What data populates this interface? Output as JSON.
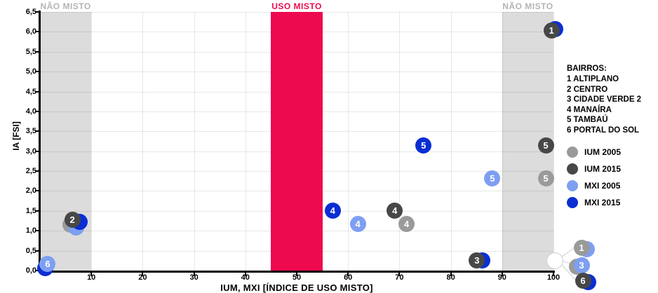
{
  "chart_data": {
    "type": "scatter",
    "xlabel": "IUM, MXI [ÍNDICE DE USO MISTO]",
    "ylabel": "IA [FSI]",
    "xlim": [
      0,
      100
    ],
    "ylim": [
      0,
      6.5
    ],
    "grid": true,
    "x_ticks": [
      10,
      20,
      30,
      40,
      50,
      60,
      70,
      80,
      90,
      100
    ],
    "x_tick_labels": [
      "10",
      "20",
      "30",
      "40",
      "50",
      "60",
      "70",
      "80",
      "90",
      "100"
    ],
    "y_ticks": [
      0,
      0.5,
      1,
      1.5,
      2,
      2.5,
      3,
      3.5,
      4,
      4.5,
      5,
      5.5,
      6,
      6.5
    ],
    "y_tick_labels": [
      "0,0",
      "0,5",
      "1,0",
      "1,5",
      "2,0",
      "2,5",
      "3,0",
      "3,5",
      "4,0",
      "4,5",
      "5,0",
      "5,5",
      "6,0",
      "6,5"
    ],
    "bands": [
      {
        "label": "NÃO MISTO",
        "x0": 0,
        "x1": 10,
        "color": "#dcdcdc",
        "label_color": "#b4b4b4",
        "overlay": false
      },
      {
        "label": "USO MISTO",
        "x0": 45,
        "x1": 55,
        "color": "#ed0a4f",
        "label_color": "#ed0a4f",
        "overlay": true
      },
      {
        "label": "NÃO MISTO",
        "x0": 90,
        "x1": 100,
        "color": "#dcdcdc",
        "label_color": "#b4b4b4",
        "overlay": false
      }
    ],
    "series": [
      {
        "name": "IUM 2005",
        "color": "#9a9a9a"
      },
      {
        "name": "IUM 2015",
        "color": "#474747"
      },
      {
        "name": "MXI 2005",
        "color": "#7e9ff1"
      },
      {
        "name": "MXI 2015",
        "color": "#0a2ed2"
      }
    ],
    "points": [
      {
        "bairro": 6,
        "series": "MXI 2015",
        "x": 1.0,
        "y": 0.07,
        "show_label": false
      },
      {
        "bairro": 6,
        "series": "MXI 2005",
        "x": 1.5,
        "y": 0.16,
        "show_label": true
      },
      {
        "bairro": 2,
        "series": "IUM 2005",
        "x": 5.9,
        "y": 1.15,
        "show_label": false
      },
      {
        "bairro": 2,
        "series": "MXI 2005",
        "x": 7.0,
        "y": 1.09,
        "show_label": false
      },
      {
        "bairro": 2,
        "series": "MXI 2015",
        "x": 7.7,
        "y": 1.23,
        "show_label": false
      },
      {
        "bairro": 2,
        "series": "IUM 2015",
        "x": 6.3,
        "y": 1.27,
        "show_label": true
      },
      {
        "bairro": 4,
        "series": "MXI 2015",
        "x": 57.0,
        "y": 1.5,
        "show_label": true
      },
      {
        "bairro": 4,
        "series": "MXI 2005",
        "x": 61.9,
        "y": 1.18,
        "show_label": true
      },
      {
        "bairro": 4,
        "series": "IUM 2015",
        "x": 69.1,
        "y": 1.5,
        "show_label": true
      },
      {
        "bairro": 4,
        "series": "IUM 2005",
        "x": 71.4,
        "y": 1.18,
        "show_label": true
      },
      {
        "bairro": 5,
        "series": "MXI 2015",
        "x": 74.7,
        "y": 3.14,
        "show_label": true
      },
      {
        "bairro": 5,
        "series": "MXI 2005",
        "x": 88.1,
        "y": 2.31,
        "show_label": true
      },
      {
        "bairro": 5,
        "series": "IUM 2015",
        "x": 98.5,
        "y": 3.14,
        "show_label": true
      },
      {
        "bairro": 5,
        "series": "IUM 2005",
        "x": 98.5,
        "y": 2.31,
        "show_label": true
      },
      {
        "bairro": 3,
        "series": "MXI 2015",
        "x": 86.2,
        "y": 0.26,
        "show_label": false
      },
      {
        "bairro": 3,
        "series": "IUM 2015",
        "x": 85.1,
        "y": 0.25,
        "show_label": true
      },
      {
        "bairro": 1,
        "series": "MXI 2015",
        "x": 100.4,
        "y": 6.06,
        "show_label": false
      },
      {
        "bairro": 1,
        "series": "IUM 2015",
        "x": 99.6,
        "y": 6.04,
        "show_label": true
      }
    ],
    "callout": {
      "anchor": {
        "x": 100.3,
        "y": 0.25
      },
      "badges": [
        {
          "label": "1",
          "front": "IUM 2005",
          "back": "MXI 2005",
          "back_side": "right"
        },
        {
          "label": "3",
          "front": "MXI 2005",
          "back": "IUM 2005",
          "back_side": "left"
        },
        {
          "label": "6",
          "front": "IUM 2015",
          "back": "MXI 2015",
          "back_side": "right"
        }
      ]
    }
  },
  "legend": {
    "bairros_title": "BAIRROS:",
    "bairros": [
      "1 ALTIPLANO",
      "2 CENTRO",
      "3 CIDADE VERDE 2",
      "4 MANAÍRA",
      "5 TAMBAÚ",
      "6 PORTAL DO SOL"
    ],
    "series_labels": [
      "IUM 2005",
      "IUM 2015",
      "MXI 2005",
      "MXI 2015"
    ]
  }
}
